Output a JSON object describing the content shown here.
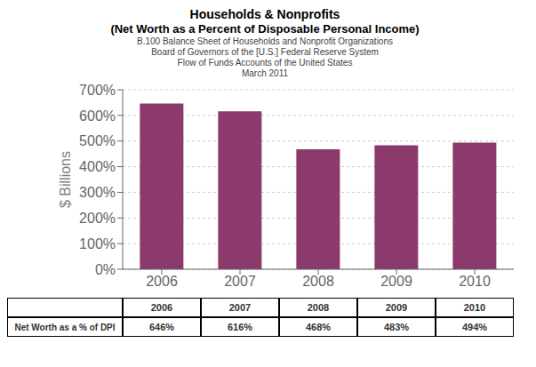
{
  "chart_data": {
    "type": "bar",
    "title": "Households & Nonprofits",
    "subtitle": [
      "(Net Worth as a Percent of Disposable Personal Income)",
      "B.100 Balance Sheet of Households and Nonprofit Organizations",
      "Board of Governors of the [U.S.] Federal Reserve System",
      "Flow of Funds Accounts of the United States",
      "March 2011"
    ],
    "categories": [
      "2006",
      "2007",
      "2008",
      "2009",
      "2010"
    ],
    "values": [
      646,
      616,
      468,
      483,
      494
    ],
    "value_labels": [
      "646%",
      "616%",
      "468%",
      "483%",
      "494%"
    ],
    "color": "#8B3A6B",
    "ylabel": "$ Billions",
    "ylim": [
      0,
      700
    ],
    "yticks": [
      {
        "value": 0,
        "label": "0%"
      },
      {
        "value": 100,
        "label": "100%"
      },
      {
        "value": 200,
        "label": "200%"
      },
      {
        "value": 300,
        "label": "300%"
      },
      {
        "value": 400,
        "label": "400%"
      },
      {
        "value": 500,
        "label": "500%"
      },
      {
        "value": 600,
        "label": "600%"
      },
      {
        "value": 700,
        "label": "700%"
      }
    ],
    "grid": true,
    "annotations": [
      "Net Worth as a % of DPI"
    ]
  }
}
